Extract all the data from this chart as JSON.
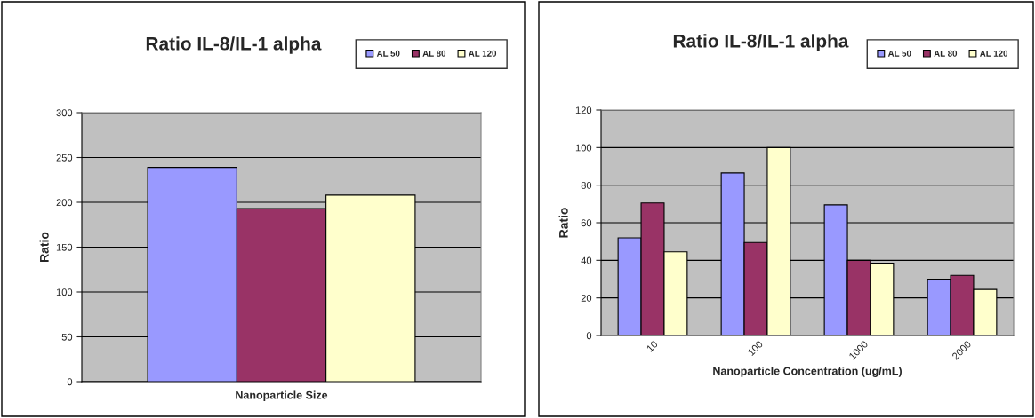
{
  "chart_data": [
    {
      "type": "bar",
      "title": "Ratio IL-8/IL-1 alpha",
      "xlabel": "Nanoparticle Size",
      "ylabel": "Ratio",
      "categories": [
        null
      ],
      "ylim": [
        0,
        300
      ],
      "yticks": [
        0,
        50,
        100,
        150,
        200,
        250,
        300
      ],
      "grid": "y",
      "legend": "top right",
      "series": [
        {
          "name": "AL 50",
          "color": "#9999ff",
          "values": [
            239
          ]
        },
        {
          "name": "AL 80",
          "color": "#993366",
          "values": [
            193
          ]
        },
        {
          "name": "AL 120",
          "color": "#ffffcc",
          "values": [
            208
          ]
        }
      ]
    },
    {
      "type": "bar",
      "title": "Ratio IL-8/IL-1 alpha",
      "xlabel": "Nanoparticle Concentration (ug/mL)",
      "ylabel": "Ratio",
      "categories": [
        "10",
        "100",
        "1000",
        "2000"
      ],
      "ylim": [
        0,
        120
      ],
      "yticks": [
        0,
        20,
        40,
        60,
        80,
        100,
        120
      ],
      "grid": "y",
      "legend": "top right",
      "series": [
        {
          "name": "AL 50",
          "color": "#9999ff",
          "values": [
            52,
            86.5,
            69.5,
            30
          ]
        },
        {
          "name": "AL 80",
          "color": "#993366",
          "values": [
            70.5,
            49.5,
            40,
            32
          ]
        },
        {
          "name": "AL 120",
          "color": "#ffffcc",
          "values": [
            44.5,
            100,
            38.5,
            24.5
          ]
        }
      ]
    }
  ]
}
